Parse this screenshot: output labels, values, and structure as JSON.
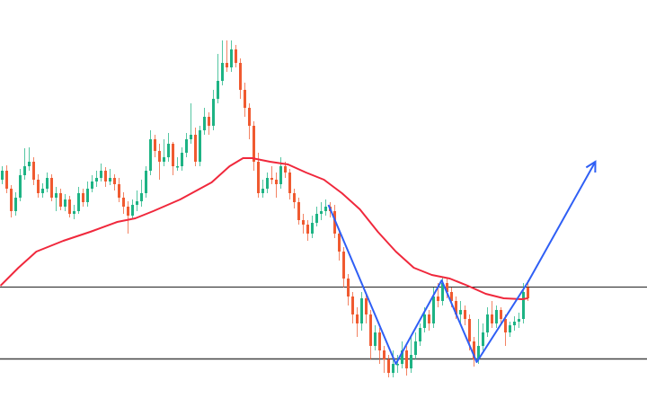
{
  "chart_data": {
    "type": "candlestick",
    "title": "",
    "xlabel": "",
    "ylabel": "",
    "axes_visible": false,
    "grid": false,
    "colors": {
      "up": "#1db384",
      "down": "#f05a30",
      "moving_average": "#f0283c",
      "pattern_line": "#2f5ff5",
      "level_line": "#222222",
      "background": "#ffffff"
    },
    "candles": [
      [
        260,
        275,
        255,
        270
      ],
      [
        270,
        276,
        245,
        250
      ],
      [
        250,
        254,
        218,
        225
      ],
      [
        225,
        246,
        220,
        240
      ],
      [
        240,
        272,
        236,
        265
      ],
      [
        265,
        295,
        260,
        275
      ],
      [
        275,
        296,
        270,
        280
      ],
      [
        280,
        285,
        254,
        260
      ],
      [
        260,
        266,
        240,
        245
      ],
      [
        245,
        256,
        240,
        250
      ],
      [
        250,
        268,
        246,
        262
      ],
      [
        262,
        266,
        236,
        240
      ],
      [
        240,
        252,
        225,
        245
      ],
      [
        245,
        250,
        226,
        230
      ],
      [
        230,
        244,
        225,
        238
      ],
      [
        238,
        242,
        218,
        222
      ],
      [
        222,
        232,
        216,
        225
      ],
      [
        225,
        252,
        222,
        245
      ],
      [
        245,
        250,
        230,
        235
      ],
      [
        235,
        258,
        230,
        250
      ],
      [
        250,
        265,
        246,
        258
      ],
      [
        258,
        270,
        252,
        262
      ],
      [
        262,
        278,
        258,
        270
      ],
      [
        270,
        274,
        252,
        258
      ],
      [
        258,
        272,
        254,
        262
      ],
      [
        262,
        266,
        248,
        255
      ],
      [
        255,
        262,
        235,
        240
      ],
      [
        240,
        246,
        222,
        230
      ],
      [
        230,
        236,
        200,
        220
      ],
      [
        220,
        238,
        216,
        232
      ],
      [
        232,
        248,
        225,
        236
      ],
      [
        236,
        260,
        230,
        245
      ],
      [
        245,
        275,
        240,
        270
      ],
      [
        270,
        315,
        265,
        305
      ],
      [
        305,
        310,
        285,
        292
      ],
      [
        292,
        300,
        260,
        280
      ],
      [
        280,
        305,
        275,
        285
      ],
      [
        285,
        312,
        280,
        300
      ],
      [
        300,
        302,
        265,
        275
      ],
      [
        275,
        285,
        270,
        275
      ],
      [
        275,
        296,
        270,
        290
      ],
      [
        290,
        312,
        285,
        305
      ],
      [
        305,
        345,
        300,
        310
      ],
      [
        310,
        318,
        275,
        280
      ],
      [
        280,
        320,
        275,
        315
      ],
      [
        315,
        340,
        310,
        330
      ],
      [
        330,
        335,
        310,
        320
      ],
      [
        320,
        360,
        315,
        350
      ],
      [
        350,
        400,
        345,
        370
      ],
      [
        370,
        415,
        365,
        390
      ],
      [
        390,
        415,
        380,
        385
      ],
      [
        385,
        415,
        380,
        405
      ],
      [
        405,
        410,
        385,
        390
      ],
      [
        390,
        395,
        350,
        360
      ],
      [
        360,
        368,
        330,
        340
      ],
      [
        340,
        345,
        305,
        320
      ],
      [
        320,
        325,
        270,
        280
      ],
      [
        280,
        290,
        240,
        245
      ],
      [
        245,
        260,
        240,
        250
      ],
      [
        250,
        268,
        245,
        262
      ],
      [
        262,
        275,
        255,
        260
      ],
      [
        260,
        268,
        240,
        255
      ],
      [
        255,
        285,
        250,
        275
      ],
      [
        275,
        280,
        262,
        268
      ],
      [
        268,
        272,
        238,
        245
      ],
      [
        245,
        250,
        228,
        235
      ],
      [
        235,
        240,
        210,
        215
      ],
      [
        215,
        222,
        200,
        210
      ],
      [
        210,
        215,
        192,
        200
      ],
      [
        200,
        220,
        195,
        212
      ],
      [
        212,
        230,
        208,
        222
      ],
      [
        222,
        235,
        215,
        225
      ],
      [
        225,
        238,
        220,
        230
      ],
      [
        230,
        235,
        218,
        225
      ],
      [
        225,
        232,
        195,
        200
      ],
      [
        200,
        205,
        170,
        180
      ],
      [
        180,
        185,
        140,
        150
      ],
      [
        150,
        155,
        120,
        130
      ],
      [
        130,
        135,
        100,
        110
      ],
      [
        110,
        118,
        85,
        100
      ],
      [
        100,
        135,
        92,
        128
      ],
      [
        128,
        132,
        100,
        110
      ],
      [
        110,
        115,
        60,
        75
      ],
      [
        75,
        98,
        70,
        90
      ],
      [
        90,
        95,
        55,
        70
      ],
      [
        70,
        75,
        45,
        60
      ],
      [
        60,
        65,
        40,
        45
      ],
      [
        45,
        70,
        40,
        55
      ],
      [
        55,
        65,
        45,
        55
      ],
      [
        55,
        80,
        50,
        70
      ],
      [
        70,
        75,
        42,
        50
      ],
      [
        50,
        85,
        45,
        65
      ],
      [
        65,
        90,
        60,
        80
      ],
      [
        80,
        100,
        75,
        95
      ],
      [
        95,
        118,
        90,
        110
      ],
      [
        110,
        115,
        92,
        100
      ],
      [
        100,
        140,
        95,
        130
      ],
      [
        130,
        145,
        118,
        125
      ],
      [
        125,
        152,
        120,
        145
      ],
      [
        145,
        150,
        128,
        135
      ],
      [
        135,
        140,
        118,
        125
      ],
      [
        125,
        130,
        105,
        110
      ],
      [
        110,
        125,
        100,
        115
      ],
      [
        115,
        120,
        98,
        105
      ],
      [
        105,
        110,
        70,
        80
      ],
      [
        80,
        85,
        52,
        60
      ],
      [
        60,
        105,
        55,
        75
      ],
      [
        75,
        100,
        70,
        90
      ],
      [
        90,
        118,
        85,
        110
      ],
      [
        110,
        125,
        95,
        100
      ],
      [
        100,
        120,
        95,
        115
      ],
      [
        115,
        118,
        100,
        105
      ],
      [
        105,
        110,
        75,
        90
      ],
      [
        90,
        102,
        85,
        98
      ],
      [
        98,
        108,
        92,
        102
      ],
      [
        102,
        112,
        95,
        105
      ],
      [
        105,
        145,
        100,
        135
      ],
      [
        140,
        148,
        125,
        128
      ]
    ],
    "moving_average": [
      [
        -0.4,
        142
      ],
      [
        3.6,
        162
      ],
      [
        7.6,
        180
      ],
      [
        13.6,
        192
      ],
      [
        19.6,
        202
      ],
      [
        25.6,
        213
      ],
      [
        29.6,
        217
      ],
      [
        33.6,
        225
      ],
      [
        39.6,
        238
      ],
      [
        46.6,
        257
      ],
      [
        50.6,
        275
      ],
      [
        53.6,
        284
      ],
      [
        55.6,
        284
      ],
      [
        59.6,
        280
      ],
      [
        63.6,
        277
      ],
      [
        67.6,
        268
      ],
      [
        71.6,
        260
      ],
      [
        75.6,
        245
      ],
      [
        79.6,
        227
      ],
      [
        83.6,
        202
      ],
      [
        87.6,
        180
      ],
      [
        91.6,
        162
      ],
      [
        95.6,
        154
      ],
      [
        99.6,
        150
      ],
      [
        103.6,
        142
      ],
      [
        107.6,
        133
      ],
      [
        111.6,
        128
      ],
      [
        115.6,
        127
      ],
      [
        117,
        128
      ]
    ],
    "horizontal_levels": [
      141,
      61
    ],
    "pattern_line": [
      [
        72.6,
        232
      ],
      [
        87.6,
        55
      ],
      [
        97.8,
        148
      ],
      [
        105.6,
        57
      ],
      [
        117,
        146
      ],
      [
        132,
        280
      ]
    ],
    "pattern_arrow_head": true
  }
}
